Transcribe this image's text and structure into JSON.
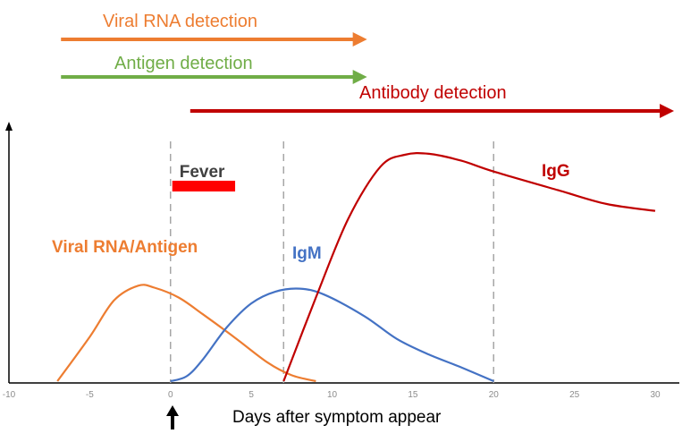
{
  "chart_data": {
    "type": "line",
    "title": "",
    "xlabel": "Days after symptom appear",
    "ylabel": "",
    "xlim": [
      -10,
      30
    ],
    "xticks": [
      -10,
      -5,
      0,
      5,
      10,
      15,
      20,
      25,
      30
    ],
    "grid": false,
    "reference_lines": [
      0,
      7,
      20
    ],
    "series": [
      {
        "name": "Viral RNA/Antigen",
        "color": "#ed7d31",
        "points": [
          [
            -7,
            0
          ],
          [
            -5,
            0.45
          ],
          [
            -3.5,
            0.82
          ],
          [
            -2,
            0.97
          ],
          [
            -1,
            0.95
          ],
          [
            0.5,
            0.85
          ],
          [
            2,
            0.68
          ],
          [
            4,
            0.44
          ],
          [
            6,
            0.19
          ],
          [
            7.5,
            0.06
          ],
          [
            9,
            0
          ]
        ]
      },
      {
        "name": "IgM",
        "color": "#4472c4",
        "points": [
          [
            0,
            0
          ],
          [
            1,
            0.05
          ],
          [
            2,
            0.22
          ],
          [
            3.5,
            0.55
          ],
          [
            5,
            0.79
          ],
          [
            6.5,
            0.91
          ],
          [
            8,
            0.94
          ],
          [
            9.5,
            0.88
          ],
          [
            12,
            0.66
          ],
          [
            14,
            0.43
          ],
          [
            16,
            0.27
          ],
          [
            18,
            0.14
          ],
          [
            20,
            0
          ]
        ]
      },
      {
        "name": "IgG",
        "color": "#c00000",
        "points": [
          [
            7,
            0
          ],
          [
            9,
            0.85
          ],
          [
            11,
            1.65
          ],
          [
            13,
            2.18
          ],
          [
            14.5,
            2.3
          ],
          [
            16,
            2.31
          ],
          [
            18,
            2.24
          ],
          [
            20,
            2.13
          ],
          [
            24,
            1.94
          ],
          [
            27,
            1.8
          ],
          [
            30,
            1.73
          ]
        ]
      }
    ],
    "annotations": [
      {
        "label": "Fever",
        "type": "bar",
        "color": "#ff0000",
        "x_start": 0,
        "x_end": 4
      },
      {
        "label": "Viral RNA detection",
        "type": "arrow",
        "color": "#ed7d31",
        "x_start": -7,
        "x_end": 12
      },
      {
        "label": "Antigen detection",
        "type": "arrow",
        "color": "#70ad47",
        "x_start": -7,
        "x_end": 12
      },
      {
        "label": "Antibody detection",
        "type": "arrow",
        "color": "#c00000",
        "x_start": 1,
        "x_end": 31
      }
    ]
  }
}
